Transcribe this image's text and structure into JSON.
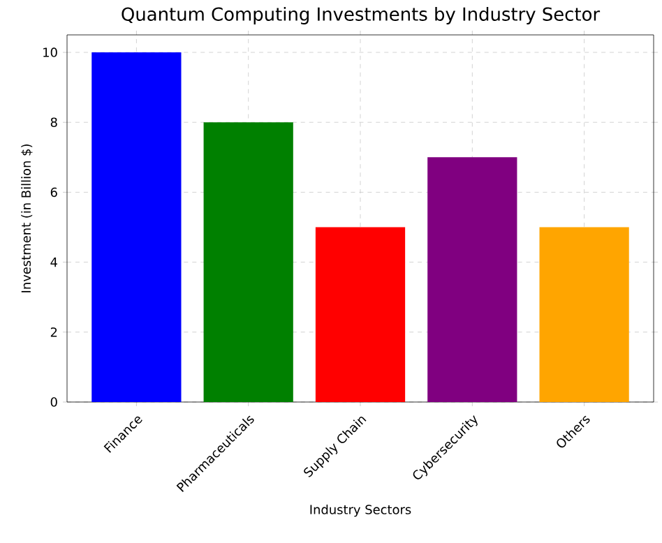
{
  "chart_data": {
    "type": "bar",
    "title": "Quantum Computing Investments by Industry Sector",
    "xlabel": "Industry Sectors",
    "ylabel": "Investment (in Billion $)",
    "categories": [
      "Finance",
      "Pharmaceuticals",
      "Supply Chain",
      "Cybersecurity",
      "Others"
    ],
    "values": [
      10,
      8,
      5,
      7,
      5
    ],
    "colors": [
      "#0000ff",
      "#008000",
      "#ff0000",
      "#800080",
      "#ffa500"
    ],
    "ylim": [
      0,
      10.5
    ],
    "yticks": [
      0,
      2,
      4,
      6,
      8,
      10
    ],
    "grid": true
  }
}
